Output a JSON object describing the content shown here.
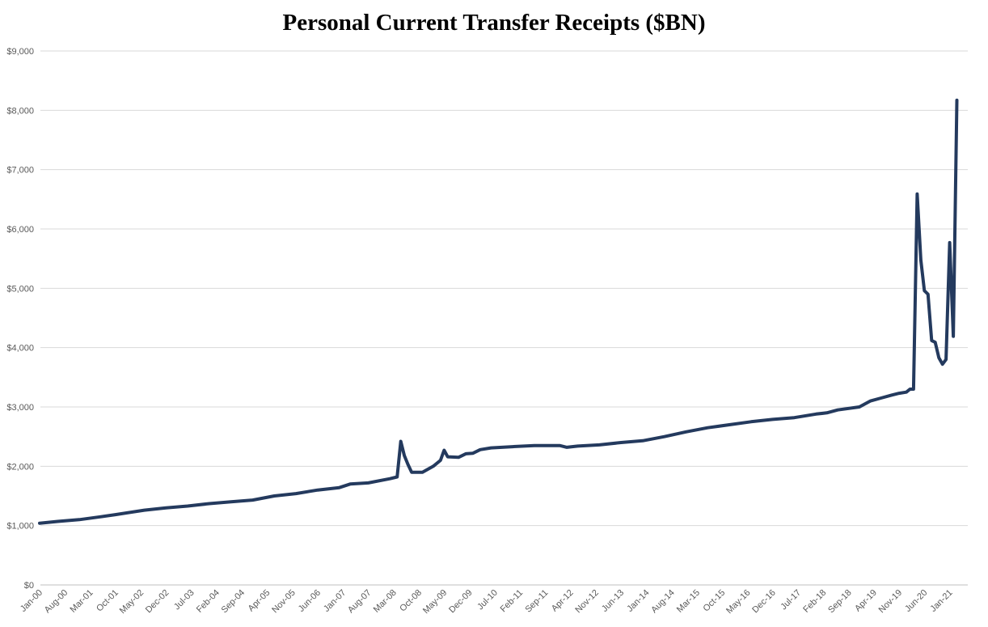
{
  "chart_data": {
    "type": "line",
    "title": "Personal Current Transfer Receipts ($BN)",
    "xlabel": "",
    "ylabel": "",
    "ylim": [
      0,
      9000
    ],
    "y_ticks": [
      "$0",
      "$1,000",
      "$2,000",
      "$3,000",
      "$4,000",
      "$5,000",
      "$6,000",
      "$7,000",
      "$8,000",
      "$9,000"
    ],
    "x_ticks": [
      "Jan-00",
      "Aug-00",
      "Mar-01",
      "Oct-01",
      "May-02",
      "Dec-02",
      "Jul-03",
      "Feb-04",
      "Sep-04",
      "Apr-05",
      "Nov-05",
      "Jun-06",
      "Jan-07",
      "Aug-07",
      "Mar-08",
      "Oct-08",
      "May-09",
      "Dec-09",
      "Jul-10",
      "Feb-11",
      "Sep-11",
      "Apr-12",
      "Nov-12",
      "Jun-13",
      "Jan-14",
      "Aug-14",
      "Mar-15",
      "Oct-15",
      "May-16",
      "Dec-16",
      "Jul-17",
      "Feb-18",
      "Sep-18",
      "Apr-19",
      "Nov-19",
      "Jun-20",
      "Jan-21"
    ],
    "grid": true,
    "line_color": "#243a5e",
    "series": [
      {
        "points": [
          [
            "2000-01",
            1040
          ],
          [
            "2000-06",
            1070
          ],
          [
            "2000-12",
            1100
          ],
          [
            "2001-06",
            1150
          ],
          [
            "2001-10",
            1185
          ],
          [
            "2002-06",
            1260
          ],
          [
            "2002-12",
            1300
          ],
          [
            "2003-06",
            1330
          ],
          [
            "2003-12",
            1370
          ],
          [
            "2004-06",
            1400
          ],
          [
            "2004-12",
            1430
          ],
          [
            "2005-06",
            1500
          ],
          [
            "2005-12",
            1540
          ],
          [
            "2006-06",
            1600
          ],
          [
            "2006-12",
            1640
          ],
          [
            "2007-03",
            1700
          ],
          [
            "2007-08",
            1720
          ],
          [
            "2008-02",
            1790
          ],
          [
            "2008-04",
            1820
          ],
          [
            "2008-05",
            2420
          ],
          [
            "2008-06",
            2180
          ],
          [
            "2008-07",
            2030
          ],
          [
            "2008-08",
            1900
          ],
          [
            "2008-11",
            1900
          ],
          [
            "2009-02",
            2000
          ],
          [
            "2009-04",
            2100
          ],
          [
            "2009-05",
            2270
          ],
          [
            "2009-06",
            2160
          ],
          [
            "2009-09",
            2150
          ],
          [
            "2009-11",
            2210
          ],
          [
            "2010-01",
            2220
          ],
          [
            "2010-03",
            2280
          ],
          [
            "2010-06",
            2310
          ],
          [
            "2010-12",
            2330
          ],
          [
            "2011-06",
            2350
          ],
          [
            "2012-01",
            2350
          ],
          [
            "2012-03",
            2320
          ],
          [
            "2012-06",
            2340
          ],
          [
            "2012-12",
            2360
          ],
          [
            "2013-06",
            2400
          ],
          [
            "2013-12",
            2430
          ],
          [
            "2014-06",
            2500
          ],
          [
            "2014-12",
            2580
          ],
          [
            "2015-06",
            2650
          ],
          [
            "2015-12",
            2700
          ],
          [
            "2016-06",
            2750
          ],
          [
            "2016-12",
            2790
          ],
          [
            "2017-06",
            2820
          ],
          [
            "2017-12",
            2880
          ],
          [
            "2018-03",
            2900
          ],
          [
            "2018-06",
            2950
          ],
          [
            "2018-12",
            3000
          ],
          [
            "2019-03",
            3100
          ],
          [
            "2019-06",
            3150
          ],
          [
            "2019-09",
            3200
          ],
          [
            "2019-11",
            3230
          ],
          [
            "2020-01",
            3250
          ],
          [
            "2020-02",
            3300
          ],
          [
            "2020-03",
            3300
          ],
          [
            "2020-04",
            6590
          ],
          [
            "2020-05",
            5480
          ],
          [
            "2020-06",
            4960
          ],
          [
            "2020-07",
            4900
          ],
          [
            "2020-08",
            4120
          ],
          [
            "2020-09",
            4090
          ],
          [
            "2020-10",
            3830
          ],
          [
            "2020-11",
            3720
          ],
          [
            "2020-12",
            3800
          ],
          [
            "2021-01",
            5770
          ],
          [
            "2021-02",
            4190
          ],
          [
            "2021-03",
            8170
          ]
        ]
      }
    ]
  }
}
